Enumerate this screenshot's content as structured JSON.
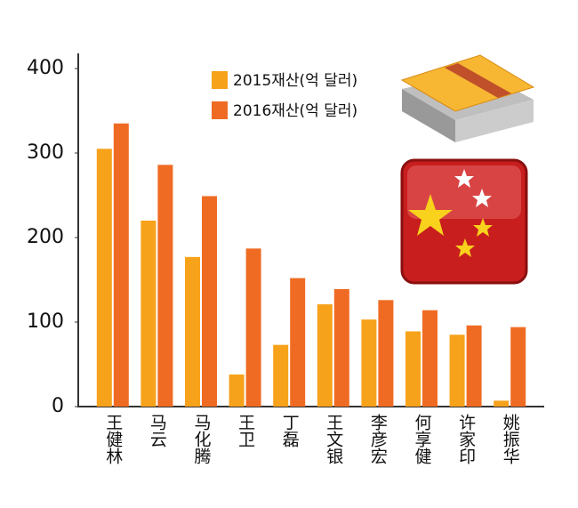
{
  "chart_data": {
    "type": "bar",
    "categories": [
      "王健林",
      "马云",
      "马化腾",
      "王卫",
      "丁磊",
      "王文银",
      "李彦宏",
      "何享健",
      "许家印",
      "姚振华"
    ],
    "series": [
      {
        "name": "2015재산(억 달러)",
        "color": "#f7a21b",
        "values": [
          305,
          220,
          177,
          38,
          73,
          121,
          103,
          89,
          85,
          7
        ]
      },
      {
        "name": "2016재산(억 달러)",
        "color": "#ef6b23",
        "values": [
          335,
          286,
          249,
          187,
          152,
          139,
          126,
          114,
          96,
          94
        ]
      }
    ],
    "ylim": [
      0,
      400
    ],
    "yticks": [
      0,
      100,
      200,
      300,
      400
    ],
    "grid": false
  }
}
